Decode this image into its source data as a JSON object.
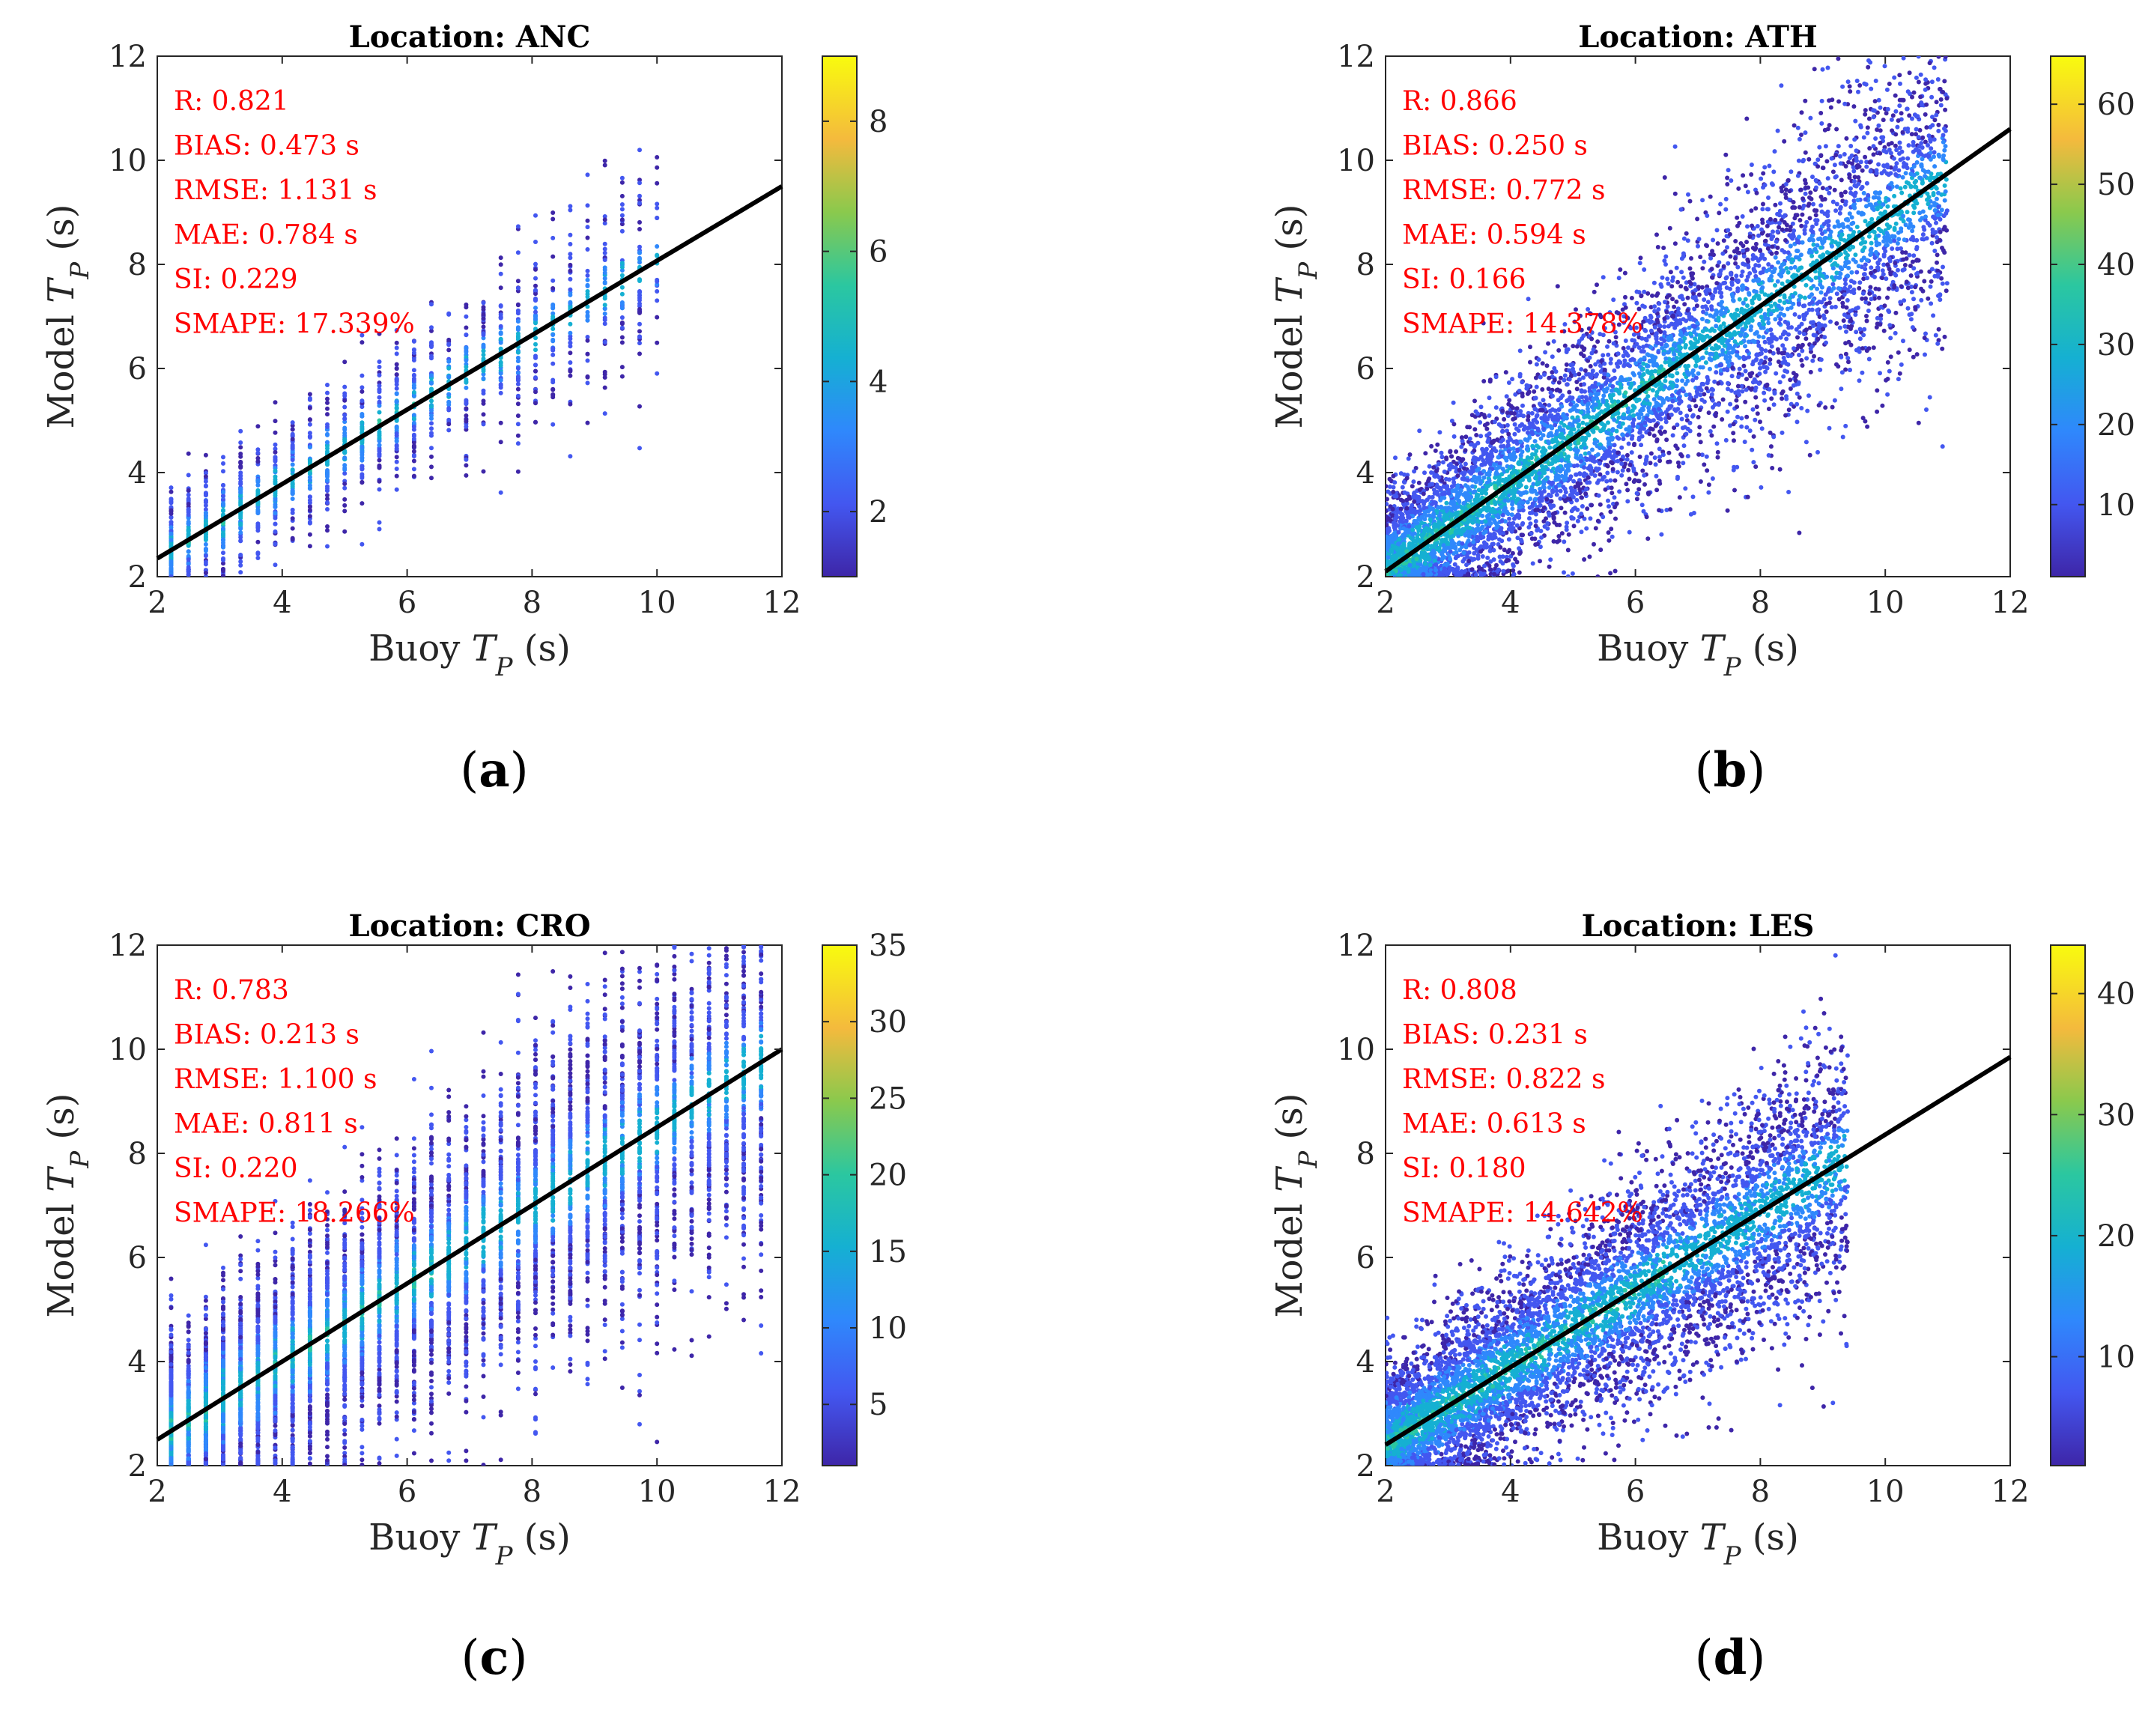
{
  "chart_data": [
    {
      "id": "a",
      "type": "scatter",
      "title": "Location: ANC",
      "xlabel": "Buoy T_P (s)",
      "ylabel": "Model T_P (s)",
      "xlim": [
        2,
        12
      ],
      "ylim": [
        2,
        12
      ],
      "xticks": [
        2,
        4,
        6,
        8,
        10,
        12
      ],
      "yticks": [
        2,
        4,
        6,
        8,
        10,
        12
      ],
      "colorbar": {
        "range": [
          1,
          9
        ],
        "ticks": [
          2,
          4,
          6,
          8
        ]
      },
      "stats": [
        "R: 0.821",
        "BIAS: 0.473 s",
        "RMSE: 1.131 s",
        "MAE: 0.784 s",
        "SI: 0.229",
        "SMAPE: 17.339%"
      ],
      "fit_line": {
        "x": [
          2,
          12
        ],
        "y": [
          2.35,
          9.5
        ]
      },
      "panel_label": "a",
      "cloud": {
        "spread": 0.55,
        "density": "sparse",
        "xmax": 10.0,
        "discrete": true
      }
    },
    {
      "id": "b",
      "type": "scatter",
      "title": "Location: ATH",
      "xlabel": "Buoy T_P (s)",
      "ylabel": "Model T_P (s)",
      "xlim": [
        2,
        12
      ],
      "ylim": [
        2,
        12
      ],
      "xticks": [
        2,
        4,
        6,
        8,
        10,
        12
      ],
      "yticks": [
        2,
        4,
        6,
        8,
        10,
        12
      ],
      "colorbar": {
        "range": [
          1,
          66
        ],
        "ticks": [
          10,
          20,
          30,
          40,
          50,
          60
        ]
      },
      "stats": [
        "R: 0.866",
        "BIAS: 0.250 s",
        "RMSE: 0.772 s",
        "MAE: 0.594 s",
        "SI: 0.166",
        "SMAPE: 14.378%"
      ],
      "fit_line": {
        "x": [
          2,
          12
        ],
        "y": [
          2.1,
          10.6
        ]
      },
      "panel_label": "b",
      "cloud": {
        "spread": 0.75,
        "density": "dense",
        "xmax": 11.0,
        "discrete": false
      }
    },
    {
      "id": "c",
      "type": "scatter",
      "title": "Location: CRO",
      "xlabel": "Buoy T_P (s)",
      "ylabel": "Model T_P (s)",
      "xlim": [
        2,
        12
      ],
      "ylim": [
        2,
        12
      ],
      "xticks": [
        2,
        4,
        6,
        8,
        10,
        12
      ],
      "yticks": [
        2,
        4,
        6,
        8,
        10,
        12
      ],
      "colorbar": {
        "range": [
          1,
          35
        ],
        "ticks": [
          5,
          10,
          15,
          20,
          25,
          30,
          35
        ]
      },
      "stats": [
        "R: 0.783",
        "BIAS: 0.213 s",
        "RMSE: 1.100 s",
        "MAE: 0.811 s",
        "SI: 0.220",
        "SMAPE: 18.266%"
      ],
      "fit_line": {
        "x": [
          2,
          12
        ],
        "y": [
          2.5,
          10.0
        ]
      },
      "panel_label": "c",
      "cloud": {
        "spread": 0.9,
        "density": "dense",
        "xmax": 11.8,
        "discrete": true
      }
    },
    {
      "id": "d",
      "type": "scatter",
      "title": "Location: LES",
      "xlabel": "Buoy T_P (s)",
      "ylabel": "Model T_P (s)",
      "xlim": [
        2,
        12
      ],
      "ylim": [
        2,
        12
      ],
      "xticks": [
        2,
        4,
        6,
        8,
        10,
        12
      ],
      "yticks": [
        2,
        4,
        6,
        8,
        10,
        12
      ],
      "colorbar": {
        "range": [
          1,
          44
        ],
        "ticks": [
          10,
          20,
          30,
          40
        ]
      },
      "stats": [
        "R: 0.808",
        "BIAS: 0.231 s",
        "RMSE: 0.822 s",
        "MAE: 0.613 s",
        "SI: 0.180",
        "SMAPE: 14.642%"
      ],
      "fit_line": {
        "x": [
          2,
          12
        ],
        "y": [
          2.4,
          9.85
        ]
      },
      "panel_label": "d",
      "cloud": {
        "spread": 0.75,
        "density": "dense",
        "xmax": 9.4,
        "discrete": false
      }
    }
  ]
}
